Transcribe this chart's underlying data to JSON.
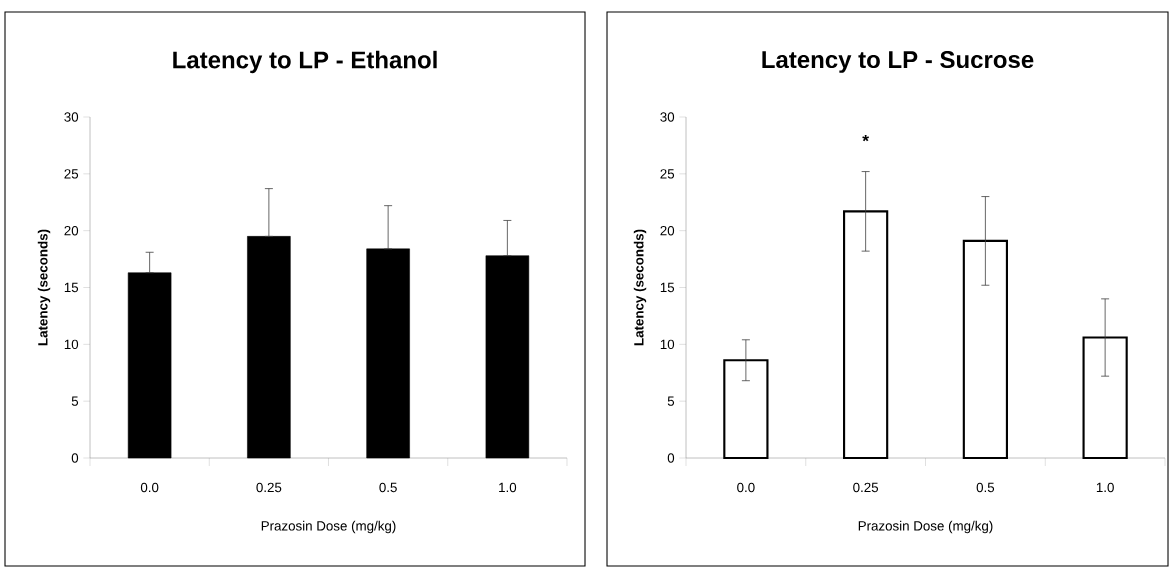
{
  "chart_data": [
    {
      "type": "bar",
      "title": "Latency to LP - Ethanol",
      "xlabel": "Prazosin Dose (mg/kg)",
      "ylabel": "Latency (seconds)",
      "categories": [
        "0.0",
        "0.25",
        "0.5",
        "1.0"
      ],
      "values": [
        16.3,
        19.5,
        18.4,
        17.8
      ],
      "color": "#000000",
      "errors": [
        [
          16.3,
          18.1
        ],
        [
          19.5,
          23.7
        ],
        [
          18.4,
          22.2
        ],
        [
          17.8,
          20.9
        ]
      ],
      "ylim": [
        0,
        30
      ],
      "yticks": [
        0,
        5,
        10,
        15,
        20,
        25,
        30
      ]
    },
    {
      "type": "bar",
      "title": "Latency to LP - Sucrose",
      "xlabel": "Prazosin Dose (mg/kg)",
      "ylabel": "Latency (seconds)",
      "categories": [
        "0.0",
        "0.25",
        "0.5",
        "1.0"
      ],
      "values": [
        8.6,
        21.7,
        19.1,
        10.6
      ],
      "color": "#ffffff",
      "errors": [
        1.8,
        3.5,
        3.9,
        3.4
      ],
      "ylim": [
        0,
        30
      ],
      "yticks": [
        0,
        5,
        10,
        15,
        20,
        25,
        30
      ],
      "annotations": [
        "*"
      ]
    }
  ]
}
